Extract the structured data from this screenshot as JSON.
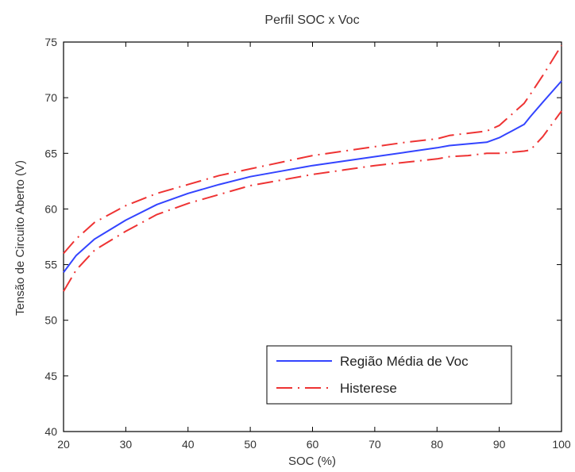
{
  "chart_data": {
    "type": "line",
    "title": "Perfil SOC x Voc",
    "xlabel": "SOC (%)",
    "ylabel": "Tensão de Circuito Aberto (V)",
    "xlim": [
      20,
      100
    ],
    "ylim": [
      40,
      75
    ],
    "xticks": [
      20,
      30,
      40,
      50,
      60,
      70,
      80,
      90,
      100
    ],
    "yticks": [
      40,
      45,
      50,
      55,
      60,
      65,
      70,
      75
    ],
    "grid": false,
    "legend_position": "bottom-right",
    "series": [
      {
        "name": "Região Média de Voc",
        "color": "#3344ff",
        "style": "solid",
        "x": [
          20,
          22,
          25,
          30,
          35,
          40,
          45,
          50,
          55,
          60,
          65,
          70,
          75,
          80,
          82,
          85,
          88,
          90,
          92,
          94,
          95,
          97,
          100
        ],
        "y": [
          54.3,
          55.8,
          57.3,
          59.0,
          60.4,
          61.4,
          62.2,
          62.9,
          63.4,
          63.9,
          64.3,
          64.7,
          65.1,
          65.5,
          65.7,
          65.85,
          66.0,
          66.4,
          67.0,
          67.6,
          68.3,
          69.6,
          71.5
        ]
      },
      {
        "name": "Histerese",
        "color": "#ee3333",
        "style": "dashdot",
        "x": [
          20,
          22,
          25,
          30,
          35,
          40,
          45,
          50,
          55,
          60,
          65,
          70,
          75,
          80,
          82,
          85,
          88,
          90,
          92,
          94,
          95,
          97,
          100
        ],
        "y": [
          56.0,
          57.3,
          58.8,
          60.3,
          61.4,
          62.2,
          63.0,
          63.6,
          64.2,
          64.8,
          65.2,
          65.6,
          66.0,
          66.3,
          66.6,
          66.8,
          67.0,
          67.5,
          68.5,
          69.5,
          70.3,
          72.0,
          74.7
        ]
      },
      {
        "x": [
          20,
          22,
          25,
          30,
          35,
          40,
          45,
          50,
          55,
          60,
          65,
          70,
          75,
          80,
          82,
          85,
          88,
          90,
          92,
          94,
          95,
          97,
          100
        ],
        "y": [
          52.6,
          54.5,
          56.3,
          58.0,
          59.5,
          60.5,
          61.3,
          62.1,
          62.6,
          63.1,
          63.5,
          63.9,
          64.2,
          64.5,
          64.7,
          64.8,
          65.0,
          65.0,
          65.1,
          65.2,
          65.3,
          66.5,
          68.8
        ],
        "color": "#ee3333",
        "style": "dashdot"
      }
    ]
  }
}
